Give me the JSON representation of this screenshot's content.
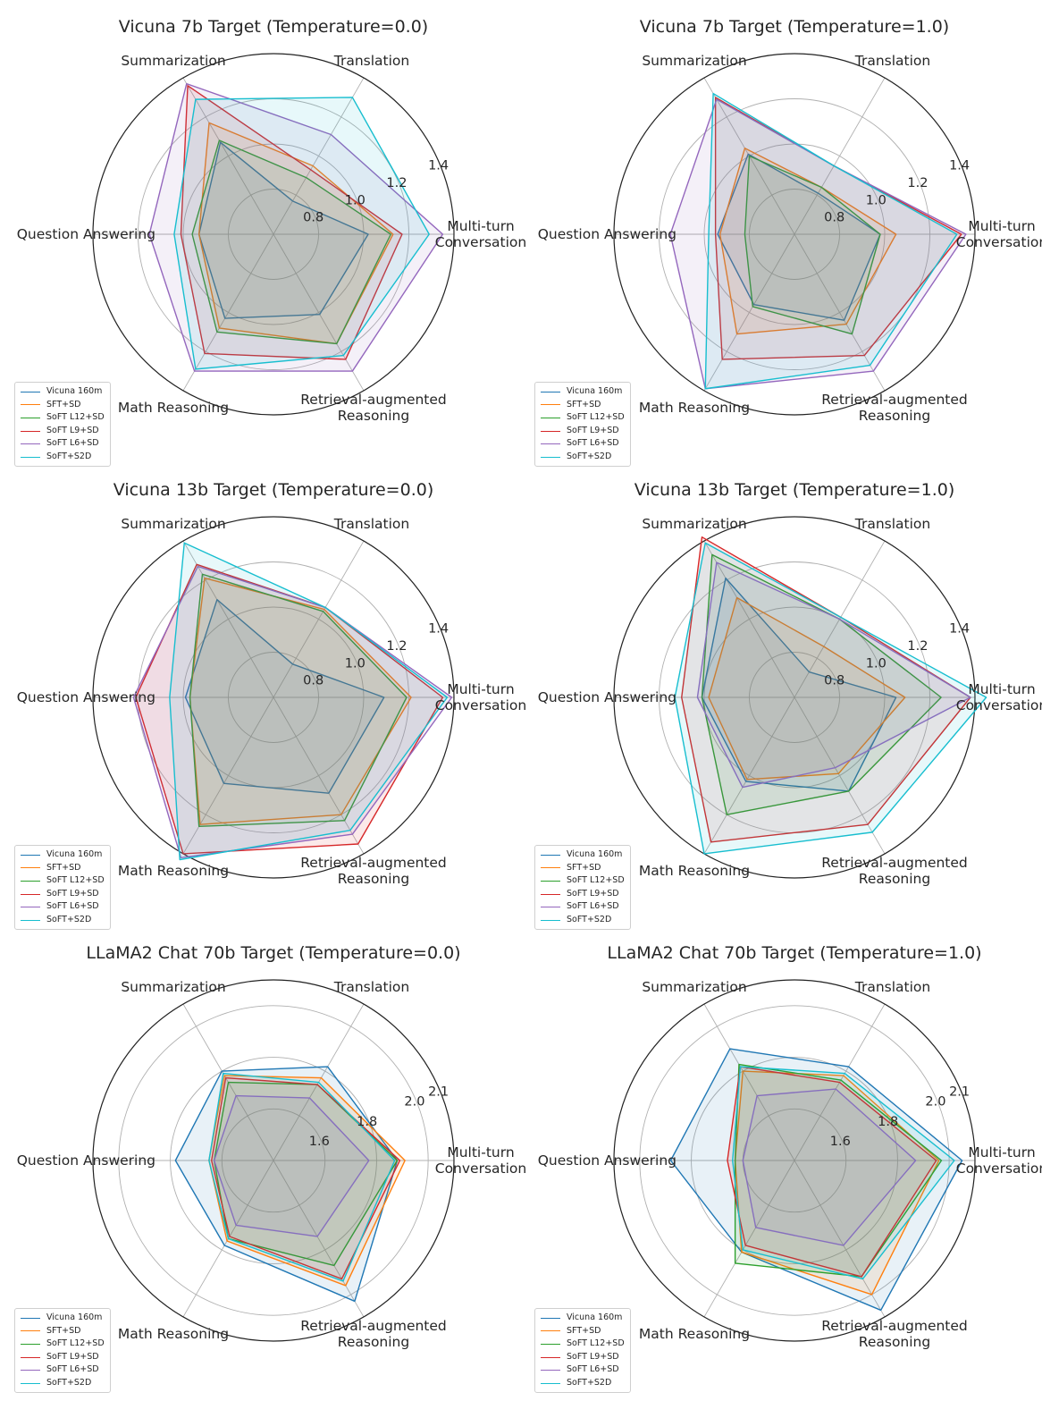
{
  "figure": {
    "colors": {
      "Vicuna 160m": "#1f77b4",
      "SFT+SD": "#ff7f0e",
      "SoFT L12+SD": "#2ca02c",
      "SoFT L9+SD": "#d62728",
      "SoFT L6+SD": "#9467bd",
      "SoFT+S2D": "#17becf"
    }
  },
  "chart_data": [
    {
      "type": "radar",
      "title": "Vicuna 7b Target (Temperature=0.0)",
      "axes": [
        "Multi-turn\nConversation",
        "Translation",
        "Summarization",
        "Question Answering",
        "Math Reasoning",
        "Retrieval-augmented\nReasoning"
      ],
      "rlim": [
        0.6,
        1.4
      ],
      "ticks": [
        0.8,
        1.0,
        1.2,
        1.4
      ],
      "legend_position": "lower-left",
      "series": [
        {
          "name": "Vicuna 160m",
          "values": [
            1.02,
            0.77,
            1.07,
            0.93,
            1.03,
            1.01
          ]
        },
        {
          "name": "SFT+SD",
          "values": [
            1.13,
            0.95,
            1.17,
            0.93,
            1.08,
            1.16
          ]
        },
        {
          "name": "SoFT L12+SD",
          "values": [
            1.12,
            0.89,
            1.08,
            0.96,
            1.1,
            1.16
          ]
        },
        {
          "name": "SoFT L9+SD",
          "values": [
            1.17,
            0.93,
            1.36,
            1.01,
            1.21,
            1.24
          ]
        },
        {
          "name": "SoFT L6+SD",
          "values": [
            1.35,
            1.11,
            1.37,
            1.15,
            1.3,
            1.3
          ]
        },
        {
          "name": "SoFT+S2D",
          "values": [
            1.29,
            1.3,
            1.29,
            1.04,
            1.29,
            1.22
          ]
        }
      ]
    },
    {
      "type": "radar",
      "title": "Vicuna 7b Target (Temperature=1.0)",
      "axes": [
        "Multi-turn\nConversation",
        "Translation",
        "Summarization",
        "Question Answering",
        "Math Reasoning",
        "Retrieval-augmented\nReasoning"
      ],
      "rlim": [
        0.6,
        1.4
      ],
      "ticks": [
        0.8,
        1.0,
        1.2,
        1.4
      ],
      "legend_position": "lower-left",
      "series": [
        {
          "name": "Vicuna 160m",
          "values": [
            0.98,
            0.81,
            1.01,
            0.94,
            0.96,
            1.04
          ]
        },
        {
          "name": "SFT+SD",
          "values": [
            1.05,
            0.84,
            1.04,
            0.93,
            1.11,
            1.06
          ]
        },
        {
          "name": "SoFT L12+SD",
          "values": [
            0.98,
            0.84,
            1.0,
            0.82,
            0.97,
            1.11
          ]
        },
        {
          "name": "SoFT L9+SD",
          "values": [
            1.34,
            0.95,
            1.3,
            0.95,
            1.24,
            1.22
          ]
        },
        {
          "name": "SoFT L6+SD",
          "values": [
            1.36,
            0.95,
            1.29,
            1.15,
            1.39,
            1.3
          ]
        },
        {
          "name": "SoFT+S2D",
          "values": [
            1.32,
            0.95,
            1.32,
            0.98,
            1.39,
            1.27
          ]
        }
      ]
    },
    {
      "type": "radar",
      "title": "Vicuna 13b Target (Temperature=0.0)",
      "axes": [
        "Multi-turn\nConversation",
        "Translation",
        "Summarization",
        "Question Answering",
        "Math Reasoning",
        "Retrieval-augmented\nReasoning"
      ],
      "rlim": [
        0.6,
        1.4
      ],
      "ticks": [
        0.8,
        1.0,
        1.2,
        1.4
      ],
      "legend_position": "lower-left",
      "series": [
        {
          "name": "Vicuna 160m",
          "values": [
            1.09,
            0.77,
            1.1,
            0.99,
            1.04,
            1.09
          ]
        },
        {
          "name": "SFT+SD",
          "values": [
            1.21,
            1.05,
            1.21,
            0.97,
            1.25,
            1.2
          ]
        },
        {
          "name": "SoFT L12+SD",
          "values": [
            1.19,
            1.04,
            1.23,
            0.97,
            1.26,
            1.23
          ]
        },
        {
          "name": "SoFT L9+SD",
          "values": [
            1.35,
            1.06,
            1.28,
            1.21,
            1.4,
            1.35
          ]
        },
        {
          "name": "SoFT L6+SD",
          "values": [
            1.39,
            1.06,
            1.27,
            1.22,
            1.42,
            1.3
          ]
        },
        {
          "name": "SoFT+S2D",
          "values": [
            1.37,
            1.06,
            1.39,
            1.06,
            1.43,
            1.28
          ]
        }
      ]
    },
    {
      "type": "radar",
      "title": "Vicuna 13b Target (Temperature=1.0)",
      "axes": [
        "Multi-turn\nConversation",
        "Translation",
        "Summarization",
        "Question Answering",
        "Math Reasoning",
        "Retrieval-augmented\nReasoning"
      ],
      "rlim": [
        0.6,
        1.4
      ],
      "ticks": [
        0.8,
        1.0,
        1.2,
        1.4
      ],
      "legend_position": "lower-left",
      "series": [
        {
          "name": "Vicuna 160m",
          "values": [
            1.05,
            0.73,
            1.21,
            1.01,
            1.03,
            1.08
          ]
        },
        {
          "name": "SFT+SD",
          "values": [
            1.09,
            0.86,
            1.11,
            0.98,
            1.02,
            0.99
          ]
        },
        {
          "name": "SoFT L12+SD",
          "values": [
            1.25,
            1.0,
            1.33,
            1.01,
            1.2,
            1.08
          ]
        },
        {
          "name": "SoFT L9+SD",
          "values": [
            1.38,
            1.01,
            1.42,
            1.1,
            1.34,
            1.25
          ]
        },
        {
          "name": "SoFT L6+SD",
          "values": [
            1.38,
            1.0,
            1.29,
            1.03,
            1.06,
            0.96
          ]
        },
        {
          "name": "SoFT+S2D",
          "values": [
            1.45,
            1.01,
            1.39,
            1.13,
            1.4,
            1.29
          ]
        }
      ]
    },
    {
      "type": "radar",
      "title": "LLaMA2 Chat 70b Target (Temperature=0.0)",
      "axes": [
        "Multi-turn\nConversation",
        "Translation",
        "Summarization",
        "Question Answering",
        "Math Reasoning",
        "Retrieval-augmented\nReasoning"
      ],
      "rlim": [
        1.4,
        2.1
      ],
      "ticks": [
        1.6,
        1.8,
        2.0,
        2.1
      ],
      "legend_position": "lower-left",
      "series": [
        {
          "name": "Vicuna 160m",
          "values": [
            1.88,
            1.82,
            1.8,
            1.78,
            1.78,
            2.03
          ]
        },
        {
          "name": "SFT+SD",
          "values": [
            1.91,
            1.77,
            1.78,
            1.65,
            1.76,
            1.96
          ]
        },
        {
          "name": "SoFT L12+SD",
          "values": [
            1.88,
            1.74,
            1.75,
            1.63,
            1.75,
            1.87
          ]
        },
        {
          "name": "SoFT L9+SD",
          "values": [
            1.89,
            1.74,
            1.77,
            1.64,
            1.74,
            1.93
          ]
        },
        {
          "name": "SoFT L6+SD",
          "values": [
            1.77,
            1.68,
            1.69,
            1.63,
            1.69,
            1.74
          ]
        },
        {
          "name": "SoFT+S2D",
          "values": [
            1.87,
            1.75,
            1.79,
            1.65,
            1.75,
            1.94
          ]
        }
      ]
    },
    {
      "type": "radar",
      "title": "LLaMA2 Chat 70b Target (Temperature=1.0)",
      "axes": [
        "Multi-turn\nConversation",
        "Translation",
        "Summarization",
        "Question Answering",
        "Math Reasoning",
        "Retrieval-augmented\nReasoning"
      ],
      "rlim": [
        1.4,
        2.1
      ],
      "ticks": [
        1.6,
        1.8,
        2.0,
        2.1
      ],
      "legend_position": "lower-left",
      "series": [
        {
          "name": "Vicuna 160m",
          "values": [
            2.05,
            1.82,
            1.9,
            1.88,
            1.81,
            2.07
          ]
        },
        {
          "name": "SFT+SD",
          "values": [
            1.96,
            1.78,
            1.8,
            1.63,
            1.81,
            2.0
          ]
        },
        {
          "name": "SoFT L12+SD",
          "values": [
            1.97,
            1.76,
            1.83,
            1.63,
            1.86,
            1.92
          ]
        },
        {
          "name": "SoFT L9+SD",
          "values": [
            1.95,
            1.75,
            1.82,
            1.66,
            1.78,
            1.92
          ]
        },
        {
          "name": "SoFT L6+SD",
          "values": [
            1.87,
            1.72,
            1.69,
            1.6,
            1.7,
            1.78
          ]
        },
        {
          "name": "SoFT+S2D",
          "values": [
            2.02,
            1.79,
            1.82,
            1.64,
            1.8,
            1.93
          ]
        }
      ]
    }
  ]
}
